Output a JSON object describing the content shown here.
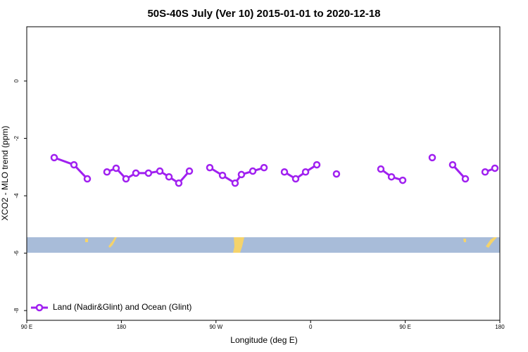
{
  "chart_data": {
    "type": "line",
    "title": "50S-40S July (Ver 10)   2015-01-01 to 2020-12-18",
    "x_label": "Longitude (deg E)",
    "y_label": "XCO2 - MLO trend (ppm)",
    "x": [
      116.1,
      134.9,
      147.6,
      null,
      166.3,
      175.0,
      184.4,
      193.8,
      205.8,
      216.6,
      225.3,
      234.6,
      244.7,
      null,
      264.1,
      276.2,
      288.2,
      294.2,
      305.0,
      315.7,
      null,
      335.1,
      345.8,
      355.2,
      365.9,
      null,
      384.6,
      null,
      426.8,
      436.9,
      447.6,
      null,
      475.7,
      null,
      495.1,
      507.2,
      null,
      526.0,
      535.3
    ],
    "series": [
      {
        "name": "Land (Nadir&Glint) and Ocean (Glint)",
        "color": "#a020f0",
        "values": [
          -2.67,
          -2.92,
          -3.41,
          null,
          -3.17,
          -3.04,
          -3.41,
          -3.21,
          -3.21,
          -3.14,
          -3.34,
          -3.56,
          -3.14,
          null,
          -3.02,
          -3.29,
          -3.56,
          -3.26,
          -3.14,
          -3.02,
          null,
          -3.17,
          -3.41,
          -3.17,
          -2.92,
          null,
          -3.24,
          null,
          -3.07,
          -3.34,
          -3.46,
          null,
          -2.67,
          null,
          -2.92,
          -3.41,
          null,
          -3.17,
          -3.04
        ]
      }
    ],
    "xlim": [
      90,
      540
    ],
    "xticks": [
      {
        "value": 90,
        "label": "90 E"
      },
      {
        "value": 180,
        "label": "180"
      },
      {
        "value": 270,
        "label": "90 W"
      },
      {
        "value": 360,
        "label": "0"
      },
      {
        "value": 450,
        "label": "90 E"
      },
      {
        "value": 540,
        "label": "180"
      }
    ],
    "ylim": [
      -8.34,
      1.89
    ],
    "yticks": [
      0,
      -2,
      -4,
      -6,
      -8
    ],
    "legend": "bottom-left"
  }
}
